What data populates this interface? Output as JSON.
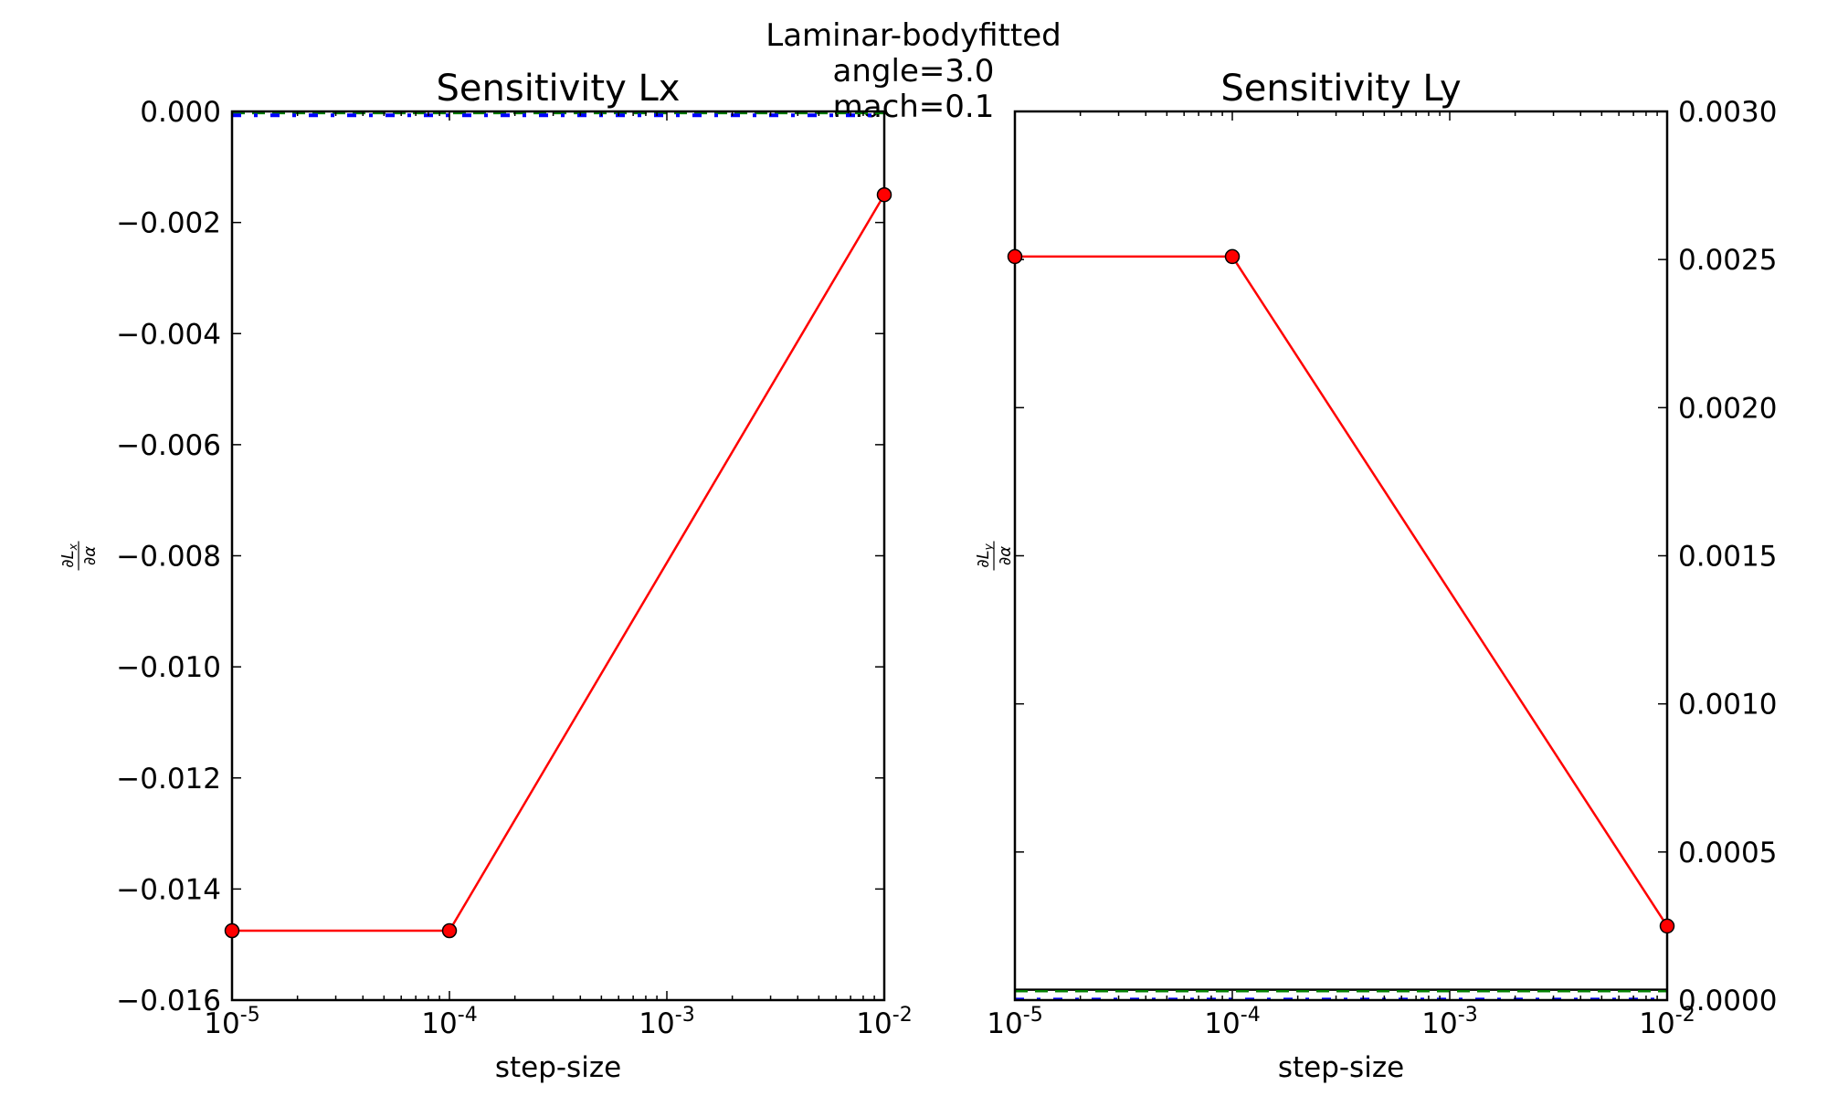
{
  "suptitle": [
    "Laminar-bodyfitted",
    "angle=3.0",
    "mach=0.1"
  ],
  "chart_data": [
    {
      "type": "line",
      "title": "Sensitivity Lx",
      "xlabel": "step-size",
      "ylabel": "∂L_x / ∂α",
      "xscale": "log",
      "xlim": [
        1e-05,
        0.01
      ],
      "ylim": [
        -0.016,
        0.0
      ],
      "xticks": [
        {
          "value": 1e-05,
          "base": "10",
          "exp": "-5"
        },
        {
          "value": 0.0001,
          "base": "10",
          "exp": "-4"
        },
        {
          "value": 0.001,
          "base": "10",
          "exp": "-3"
        },
        {
          "value": 0.01,
          "base": "10",
          "exp": "-2"
        }
      ],
      "yticks": [
        {
          "value": 0.0,
          "label": "0.000"
        },
        {
          "value": -0.002,
          "label": "−0.002"
        },
        {
          "value": -0.004,
          "label": "−0.004"
        },
        {
          "value": -0.006,
          "label": "−0.006"
        },
        {
          "value": -0.008,
          "label": "−0.008"
        },
        {
          "value": -0.01,
          "label": "−0.010"
        },
        {
          "value": -0.012,
          "label": "−0.012"
        },
        {
          "value": -0.014,
          "label": "−0.014"
        },
        {
          "value": -0.016,
          "label": "−0.016"
        }
      ],
      "yaxis_side": "left",
      "series": [
        {
          "style": "solid",
          "marker": "circle",
          "color": "#ff0000",
          "x": [
            1e-05,
            0.0001,
            0.01
          ],
          "y": [
            -0.01475,
            -0.01475,
            -0.0015
          ]
        },
        {
          "style": "dashed",
          "color": "#008000",
          "x": [
            1e-05,
            0.01
          ],
          "y": [
            -3e-05,
            -3e-05
          ]
        },
        {
          "style": "dashdot",
          "color": "#0000ff",
          "x": [
            1e-05,
            0.01
          ],
          "y": [
            -7e-05,
            -7e-05
          ]
        }
      ],
      "grid": false
    },
    {
      "type": "line",
      "title": "Sensitivity Ly",
      "xlabel": "step-size",
      "ylabel": "∂L_y / ∂α",
      "xscale": "log",
      "xlim": [
        1e-05,
        0.01
      ],
      "ylim": [
        0.0,
        0.003
      ],
      "xticks": [
        {
          "value": 1e-05,
          "base": "10",
          "exp": "-5"
        },
        {
          "value": 0.0001,
          "base": "10",
          "exp": "-4"
        },
        {
          "value": 0.001,
          "base": "10",
          "exp": "-3"
        },
        {
          "value": 0.01,
          "base": "10",
          "exp": "-2"
        }
      ],
      "yticks": [
        {
          "value": 0.003,
          "label": "0.0030"
        },
        {
          "value": 0.0025,
          "label": "0.0025"
        },
        {
          "value": 0.002,
          "label": "0.0020"
        },
        {
          "value": 0.0015,
          "label": "0.0015"
        },
        {
          "value": 0.001,
          "label": "0.0010"
        },
        {
          "value": 0.0005,
          "label": "0.0005"
        },
        {
          "value": 0.0,
          "label": "0.0000"
        }
      ],
      "yaxis_side": "right",
      "series": [
        {
          "style": "solid",
          "marker": "circle",
          "color": "#ff0000",
          "x": [
            1e-05,
            0.0001,
            0.01
          ],
          "y": [
            0.00251,
            0.00251,
            0.00025
          ]
        },
        {
          "style": "solid",
          "color": "#000000",
          "x": [
            1e-05,
            0.01
          ],
          "y": [
            3.5e-05,
            3.5e-05
          ]
        },
        {
          "style": "dashed",
          "color": "#008000",
          "x": [
            1e-05,
            0.01
          ],
          "y": [
            3e-05,
            3e-05
          ]
        },
        {
          "style": "dashdot",
          "color": "#0000ff",
          "x": [
            1e-05,
            0.01
          ],
          "y": [
            2e-06,
            2e-06
          ]
        }
      ],
      "grid": false
    }
  ]
}
